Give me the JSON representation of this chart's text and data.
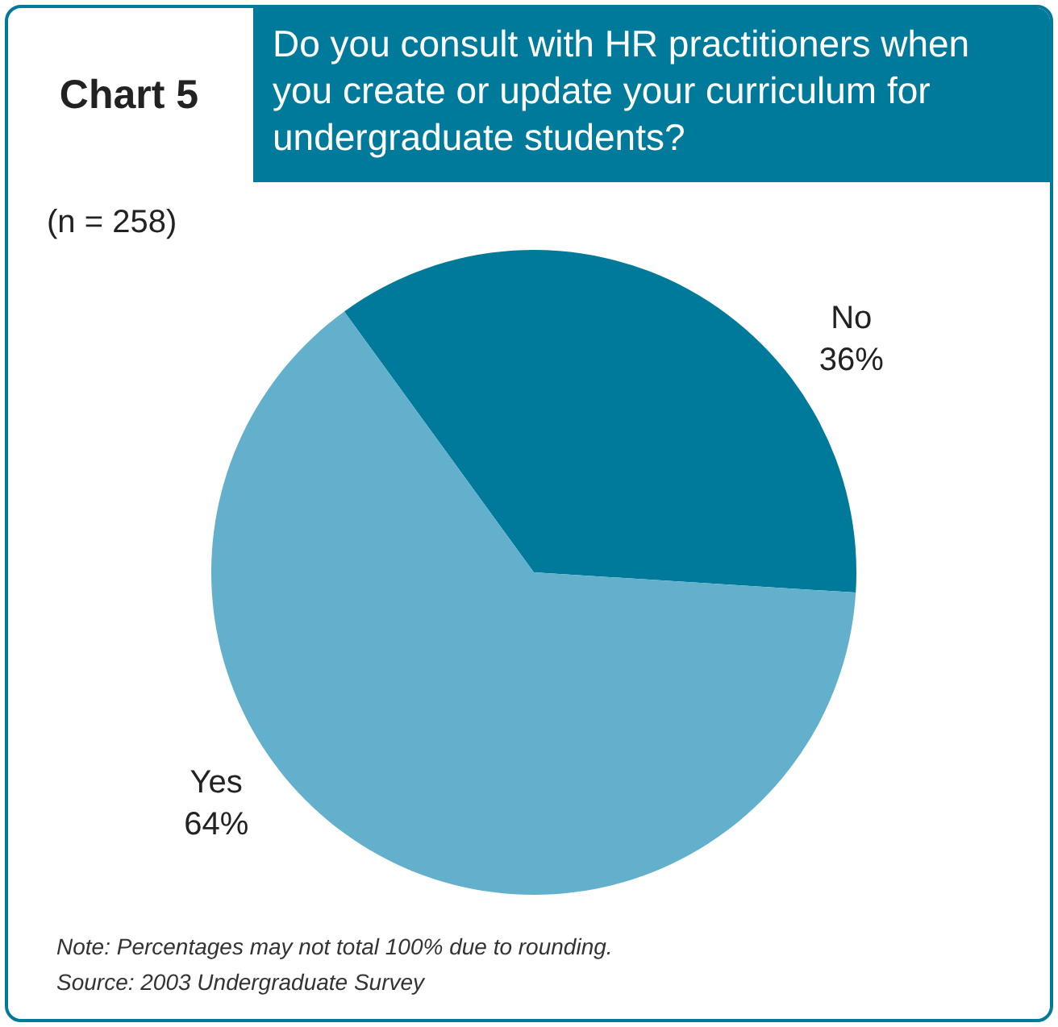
{
  "chart_data": {
    "type": "pie",
    "title": "Do you consult with HR practitioners when you create or update your curriculum for undergraduate students?",
    "subtitle": "(n = 258)",
    "categories": [
      "No",
      "Yes"
    ],
    "values": [
      36,
      64
    ],
    "value_labels": [
      "36%",
      "64%"
    ],
    "colors": [
      "#007a9a",
      "#62b0cc"
    ],
    "legend": false,
    "annotations": [
      "Chart 5",
      "Note: Percentages may not total 100% due to rounding.",
      "Source: 2003 Undergraduate Survey"
    ]
  }
}
